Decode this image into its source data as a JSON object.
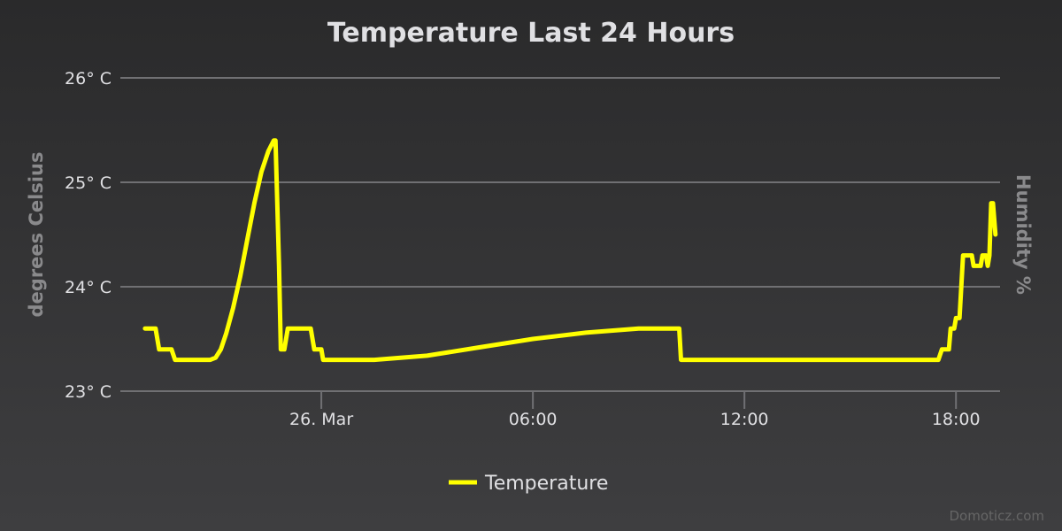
{
  "chart_data": {
    "type": "line",
    "title": "Temperature Last 24 Hours",
    "ylabel": "degrees Celsius",
    "ylabel_right": "Humidity %",
    "y_tick_labels": [
      "23° C",
      "24° C",
      "25° C",
      "26° C"
    ],
    "y_tick_values": [
      23,
      24,
      25,
      26
    ],
    "ylim": [
      23,
      26
    ],
    "x_axis_unit": "hours since 26. Mar 00:00",
    "x_tick_labels": [
      "26. Mar",
      "06:00",
      "12:00",
      "18:00"
    ],
    "x_tick_values": [
      0,
      6,
      12,
      18
    ],
    "xlim": [
      -5.7,
      19.25
    ],
    "grid": true,
    "legend_position": "bottom-center",
    "series": [
      {
        "name": "Temperature",
        "color": "#ffff00",
        "points": [
          [
            -5.0,
            23.6
          ],
          [
            -4.7,
            23.6
          ],
          [
            -4.6,
            23.4
          ],
          [
            -4.25,
            23.4
          ],
          [
            -4.15,
            23.3
          ],
          [
            -3.15,
            23.3
          ],
          [
            -3.0,
            23.32
          ],
          [
            -2.85,
            23.4
          ],
          [
            -2.7,
            23.55
          ],
          [
            -2.5,
            23.8
          ],
          [
            -2.3,
            24.1
          ],
          [
            -2.1,
            24.45
          ],
          [
            -1.9,
            24.8
          ],
          [
            -1.7,
            25.1
          ],
          [
            -1.5,
            25.3
          ],
          [
            -1.35,
            25.4
          ],
          [
            -1.3,
            25.4
          ],
          [
            -1.2,
            24.2
          ],
          [
            -1.15,
            23.4
          ],
          [
            -1.05,
            23.4
          ],
          [
            -0.95,
            23.6
          ],
          [
            -0.3,
            23.6
          ],
          [
            -0.2,
            23.4
          ],
          [
            0.0,
            23.4
          ],
          [
            0.05,
            23.3
          ],
          [
            1.5,
            23.3
          ],
          [
            3.0,
            23.34
          ],
          [
            4.5,
            23.42
          ],
          [
            6.0,
            23.5
          ],
          [
            7.5,
            23.56
          ],
          [
            9.0,
            23.6
          ],
          [
            10.15,
            23.6
          ],
          [
            10.2,
            23.3
          ],
          [
            17.5,
            23.3
          ],
          [
            17.6,
            23.4
          ],
          [
            17.8,
            23.4
          ],
          [
            17.85,
            23.6
          ],
          [
            17.95,
            23.6
          ],
          [
            18.0,
            23.7
          ],
          [
            18.1,
            23.7
          ],
          [
            18.15,
            24.0
          ],
          [
            18.2,
            24.3
          ],
          [
            18.45,
            24.3
          ],
          [
            18.5,
            24.2
          ],
          [
            18.7,
            24.2
          ],
          [
            18.75,
            24.3
          ],
          [
            18.85,
            24.3
          ],
          [
            18.9,
            24.2
          ],
          [
            18.95,
            24.3
          ],
          [
            19.0,
            24.8
          ],
          [
            19.05,
            24.8
          ],
          [
            19.12,
            24.5
          ]
        ]
      }
    ]
  },
  "credit": "Domoticz.com"
}
